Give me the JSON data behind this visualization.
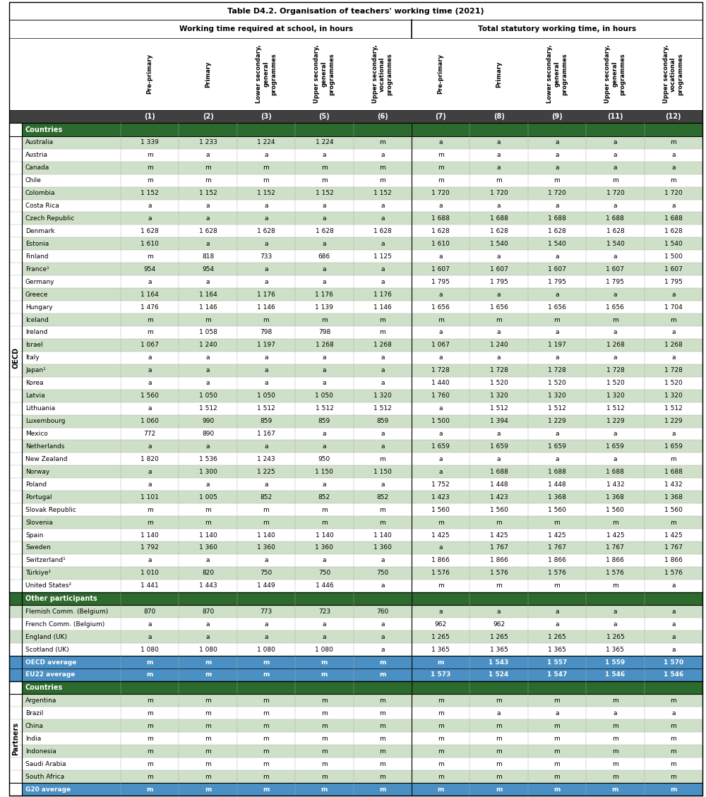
{
  "title": "Table D4.2. Organisation of teachers' working time (2021)",
  "col_groups": [
    {
      "label": "Working time required at school, in hours"
    },
    {
      "label": "Total statutory working time, in hours"
    }
  ],
  "col_headers": [
    "Pre-primary",
    "Primary",
    "Lower secondary,\ngeneral\nprogrammes",
    "Upper secondary,\ngeneral\nprogrammes",
    "Upper secondary,\nvocational\nprogrammes",
    "Pre-primary",
    "Primary",
    "Lower secondary,\ngeneral\nprogrammes",
    "Upper secondary,\ngeneral\nprogrammes",
    "Upper secondary,\nvocational\nprogrammes"
  ],
  "col_numbers": [
    "(1)",
    "(2)",
    "(3)",
    "(5)",
    "(6)",
    "(7)",
    "(8)",
    "(9)",
    "(11)",
    "(12)"
  ],
  "oecd_rows": [
    {
      "country": "Australia",
      "data": [
        "1 339",
        "1 233",
        "1 224",
        "1 224",
        "m",
        "a",
        "a",
        "a",
        "a",
        "m"
      ]
    },
    {
      "country": "Austria",
      "data": [
        "m",
        "a",
        "a",
        "a",
        "a",
        "m",
        "a",
        "a",
        "a",
        "a"
      ]
    },
    {
      "country": "Canada",
      "data": [
        "m",
        "m",
        "m",
        "m",
        "m",
        "m",
        "a",
        "a",
        "a",
        "a"
      ]
    },
    {
      "country": "Chile",
      "data": [
        "m",
        "m",
        "m",
        "m",
        "m",
        "m",
        "m",
        "m",
        "m",
        "m"
      ]
    },
    {
      "country": "Colombia",
      "data": [
        "1 152",
        "1 152",
        "1 152",
        "1 152",
        "1 152",
        "1 720",
        "1 720",
        "1 720",
        "1 720",
        "1 720"
      ]
    },
    {
      "country": "Costa Rica",
      "data": [
        "a",
        "a",
        "a",
        "a",
        "a",
        "a",
        "a",
        "a",
        "a",
        "a"
      ]
    },
    {
      "country": "Czech Republic",
      "data": [
        "a",
        "a",
        "a",
        "a",
        "a",
        "1 688",
        "1 688",
        "1 688",
        "1 688",
        "1 688"
      ]
    },
    {
      "country": "Denmark",
      "data": [
        "1 628",
        "1 628",
        "1 628",
        "1 628",
        "1 628",
        "1 628",
        "1 628",
        "1 628",
        "1 628",
        "1 628"
      ]
    },
    {
      "country": "Estonia",
      "data": [
        "1 610",
        "a",
        "a",
        "a",
        "a",
        "1 610",
        "1 540",
        "1 540",
        "1 540",
        "1 540"
      ]
    },
    {
      "country": "Finland",
      "data": [
        "m",
        "818",
        "733",
        "686",
        "1 125",
        "a",
        "a",
        "a",
        "a",
        "1 500"
      ]
    },
    {
      "country": "France¹",
      "data": [
        "954",
        "954",
        "a",
        "a",
        "a",
        "1 607",
        "1 607",
        "1 607",
        "1 607",
        "1 607"
      ]
    },
    {
      "country": "Germany",
      "data": [
        "a",
        "a",
        "a",
        "a",
        "a",
        "1 795",
        "1 795",
        "1 795",
        "1 795",
        "1 795"
      ]
    },
    {
      "country": "Greece",
      "data": [
        "1 164",
        "1 164",
        "1 176",
        "1 176",
        "1 176",
        "a",
        "a",
        "a",
        "a",
        "a"
      ]
    },
    {
      "country": "Hungary",
      "data": [
        "1 476",
        "1 146",
        "1 146",
        "1 139",
        "1 146",
        "1 656",
        "1 656",
        "1 656",
        "1 656",
        "1 704"
      ]
    },
    {
      "country": "Iceland",
      "data": [
        "m",
        "m",
        "m",
        "m",
        "m",
        "m",
        "m",
        "m",
        "m",
        "m"
      ]
    },
    {
      "country": "Ireland",
      "data": [
        "m",
        "1 058",
        "798",
        "798",
        "m",
        "a",
        "a",
        "a",
        "a",
        "a"
      ]
    },
    {
      "country": "Israel",
      "data": [
        "1 067",
        "1 240",
        "1 197",
        "1 268",
        "1 268",
        "1 067",
        "1 240",
        "1 197",
        "1 268",
        "1 268"
      ]
    },
    {
      "country": "Italy",
      "data": [
        "a",
        "a",
        "a",
        "a",
        "a",
        "a",
        "a",
        "a",
        "a",
        "a"
      ]
    },
    {
      "country": "Japan¹",
      "data": [
        "a",
        "a",
        "a",
        "a",
        "a",
        "1 728",
        "1 728",
        "1 728",
        "1 728",
        "1 728"
      ]
    },
    {
      "country": "Korea",
      "data": [
        "a",
        "a",
        "a",
        "a",
        "a",
        "1 440",
        "1 520",
        "1 520",
        "1 520",
        "1 520"
      ]
    },
    {
      "country": "Latvia",
      "data": [
        "1 560",
        "1 050",
        "1 050",
        "1 050",
        "1 320",
        "1 760",
        "1 320",
        "1 320",
        "1 320",
        "1 320"
      ]
    },
    {
      "country": "Lithuania",
      "data": [
        "a",
        "1 512",
        "1 512",
        "1 512",
        "1 512",
        "a",
        "1 512",
        "1 512",
        "1 512",
        "1 512"
      ]
    },
    {
      "country": "Luxembourg",
      "data": [
        "1 060",
        "990",
        "859",
        "859",
        "859",
        "1 500",
        "1 394",
        "1 229",
        "1 229",
        "1 229"
      ]
    },
    {
      "country": "Mexico",
      "data": [
        "772",
        "890",
        "1 167",
        "a",
        "a",
        "a",
        "a",
        "a",
        "a",
        "a"
      ]
    },
    {
      "country": "Netherlands",
      "data": [
        "a",
        "a",
        "a",
        "a",
        "a",
        "1 659",
        "1 659",
        "1 659",
        "1 659",
        "1 659"
      ]
    },
    {
      "country": "New Zealand",
      "data": [
        "1 820",
        "1 536",
        "1 243",
        "950",
        "m",
        "a",
        "a",
        "a",
        "a",
        "m"
      ]
    },
    {
      "country": "Norway",
      "data": [
        "a",
        "1 300",
        "1 225",
        "1 150",
        "1 150",
        "a",
        "1 688",
        "1 688",
        "1 688",
        "1 688"
      ]
    },
    {
      "country": "Poland",
      "data": [
        "a",
        "a",
        "a",
        "a",
        "a",
        "1 752",
        "1 448",
        "1 448",
        "1 432",
        "1 432"
      ]
    },
    {
      "country": "Portugal",
      "data": [
        "1 101",
        "1 005",
        "852",
        "852",
        "852",
        "1 423",
        "1 423",
        "1 368",
        "1 368",
        "1 368"
      ]
    },
    {
      "country": "Slovak Republic",
      "data": [
        "m",
        "m",
        "m",
        "m",
        "m",
        "1 560",
        "1 560",
        "1 560",
        "1 560",
        "1 560"
      ]
    },
    {
      "country": "Slovenia",
      "data": [
        "m",
        "m",
        "m",
        "m",
        "m",
        "m",
        "m",
        "m",
        "m",
        "m"
      ]
    },
    {
      "country": "Spain",
      "data": [
        "1 140",
        "1 140",
        "1 140",
        "1 140",
        "1 140",
        "1 425",
        "1 425",
        "1 425",
        "1 425",
        "1 425"
      ]
    },
    {
      "country": "Sweden",
      "data": [
        "1 792",
        "1 360",
        "1 360",
        "1 360",
        "1 360",
        "a",
        "1 767",
        "1 767",
        "1 767",
        "1 767"
      ]
    },
    {
      "country": "Switzerland¹",
      "data": [
        "a",
        "a",
        "a",
        "a",
        "a",
        "1 866",
        "1 866",
        "1 866",
        "1 866",
        "1 866"
      ]
    },
    {
      "country": "Türkiye¹",
      "data": [
        "1 010",
        "820",
        "750",
        "750",
        "750",
        "1 576",
        "1 576",
        "1 576",
        "1 576",
        "1 576"
      ]
    },
    {
      "country": "United States²",
      "data": [
        "1 441",
        "1 443",
        "1 449",
        "1 446",
        "a",
        "m",
        "m",
        "m",
        "m",
        "a"
      ]
    }
  ],
  "other_rows": [
    {
      "country": "Flemish Comm. (Belgium)",
      "data": [
        "870",
        "870",
        "773",
        "723",
        "760",
        "a",
        "a",
        "a",
        "a",
        "a"
      ]
    },
    {
      "country": "French Comm. (Belgium)",
      "data": [
        "a",
        "a",
        "a",
        "a",
        "a",
        "962",
        "962",
        "a",
        "a",
        "a"
      ]
    },
    {
      "country": "England (UK)",
      "data": [
        "a",
        "a",
        "a",
        "a",
        "a",
        "1 265",
        "1 265",
        "1 265",
        "1 265",
        "a"
      ]
    },
    {
      "country": "Scotland (UK)",
      "data": [
        "1 080",
        "1 080",
        "1 080",
        "1 080",
        "a",
        "1 365",
        "1 365",
        "1 365",
        "1 365",
        "a"
      ]
    }
  ],
  "averages": [
    {
      "label": "OECD average",
      "data": [
        "m",
        "m",
        "m",
        "m",
        "m",
        "m",
        "1 543",
        "1 557",
        "1 559",
        "1 570"
      ]
    },
    {
      "label": "EU22 average",
      "data": [
        "m",
        "m",
        "m",
        "m",
        "m",
        "1 573",
        "1 524",
        "1 547",
        "1 546",
        "1 546"
      ]
    }
  ],
  "partner_rows": [
    {
      "country": "Argentina",
      "data": [
        "m",
        "m",
        "m",
        "m",
        "m",
        "m",
        "m",
        "m",
        "m",
        "m"
      ]
    },
    {
      "country": "Brazil",
      "data": [
        "m",
        "m",
        "m",
        "m",
        "m",
        "m",
        "a",
        "a",
        "a",
        "a"
      ]
    },
    {
      "country": "China",
      "data": [
        "m",
        "m",
        "m",
        "m",
        "m",
        "m",
        "m",
        "m",
        "m",
        "m"
      ]
    },
    {
      "country": "India",
      "data": [
        "m",
        "m",
        "m",
        "m",
        "m",
        "m",
        "m",
        "m",
        "m",
        "m"
      ]
    },
    {
      "country": "Indonesia",
      "data": [
        "m",
        "m",
        "m",
        "m",
        "m",
        "m",
        "m",
        "m",
        "m",
        "m"
      ]
    },
    {
      "country": "Saudi Arabia",
      "data": [
        "m",
        "m",
        "m",
        "m",
        "m",
        "m",
        "m",
        "m",
        "m",
        "m"
      ]
    },
    {
      "country": "South Africa",
      "data": [
        "m",
        "m",
        "m",
        "m",
        "m",
        "m",
        "m",
        "m",
        "m",
        "m"
      ]
    }
  ],
  "g20": {
    "label": "G20 average",
    "data": [
      "m",
      "m",
      "m",
      "m",
      "m",
      "m",
      "m",
      "m",
      "m",
      "m"
    ]
  },
  "colors": {
    "light_green": "#cfe0c8",
    "medium_green": "#b8cfb0",
    "dark_green": "#2d6a2d",
    "white": "#ffffff",
    "num_row_bg": "#404040",
    "blue_avg": "#4a90c4",
    "light_gray": "#d8d8d8",
    "border_dark": "#000000",
    "border_light": "#aaaaaa",
    "oecd_side": "#ffffff",
    "partners_side": "#ffffff"
  }
}
